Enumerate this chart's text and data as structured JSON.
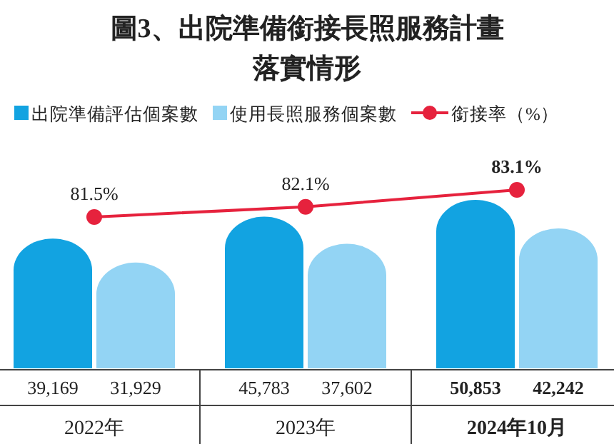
{
  "chart_data": {
    "type": "bar",
    "title": "圖3、出院準備銜接長照服務計畫落實情形",
    "categories": [
      "2022年",
      "2023年",
      "2024年10月"
    ],
    "series": [
      {
        "name": "出院準備評估個案數",
        "color": "#12a3e1",
        "values": [
          39169,
          45783,
          50853
        ],
        "value_labels": [
          "39,169",
          "45,783",
          "50,853"
        ]
      },
      {
        "name": "使用長照服務個案數",
        "color": "#93d4f4",
        "values": [
          31929,
          37602,
          42242
        ],
        "value_labels": [
          "31,929",
          "37,602",
          "42,242"
        ]
      },
      {
        "name": "銜接率（%）",
        "type": "line",
        "axis": "y2",
        "color": "#e6223d",
        "marker": "circle",
        "values": [
          81.5,
          82.1,
          83.1
        ],
        "value_labels": [
          "81.5%",
          "82.1%",
          "83.1%"
        ]
      }
    ],
    "legend": "top"
  }
}
